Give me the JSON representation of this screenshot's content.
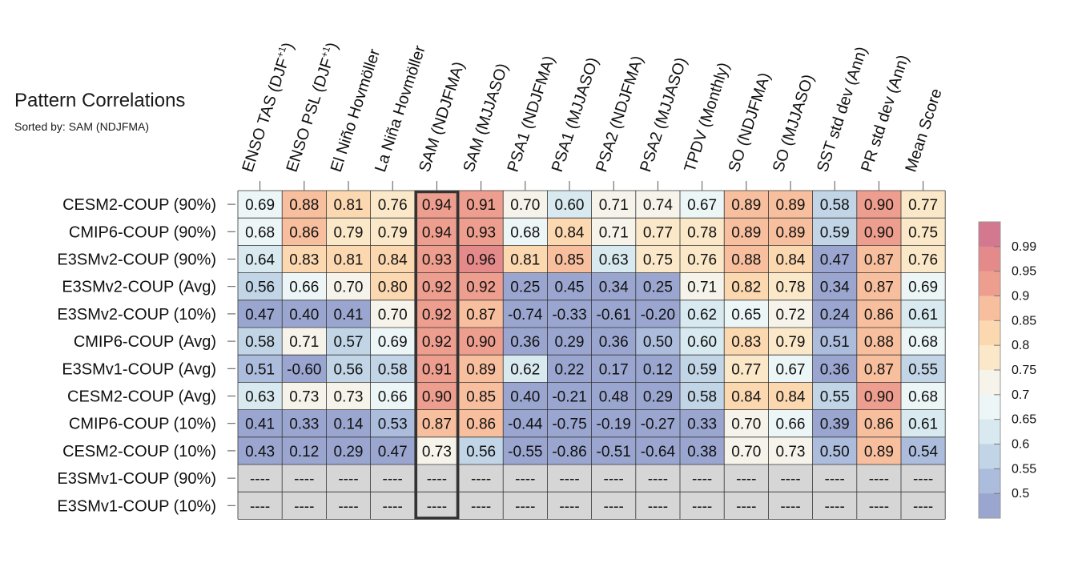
{
  "chart_data": {
    "type": "heatmap",
    "title": "Pattern Correlations",
    "subtitle": "Sorted by: SAM (NDJFMA)",
    "columns": [
      {
        "label": "ENSO TAS (DJF",
        "sup": "+1",
        "close": ")"
      },
      {
        "label": "ENSO PSL (DJF",
        "sup": "+1",
        "close": ")"
      },
      {
        "label": "El Niño Hovmöller",
        "sup": "",
        "close": ""
      },
      {
        "label": "La Niña Hovmöller",
        "sup": "",
        "close": ""
      },
      {
        "label": "SAM (NDJFMA)",
        "sup": "",
        "close": ""
      },
      {
        "label": "SAM (MJJASO)",
        "sup": "",
        "close": ""
      },
      {
        "label": "PSA1 (NDJFMA)",
        "sup": "",
        "close": ""
      },
      {
        "label": "PSA1 (MJJASO)",
        "sup": "",
        "close": ""
      },
      {
        "label": "PSA2 (NDJFMA)",
        "sup": "",
        "close": ""
      },
      {
        "label": "PSA2 (MJJASO)",
        "sup": "",
        "close": ""
      },
      {
        "label": "TPDV (Monthly)",
        "sup": "",
        "close": ""
      },
      {
        "label": "SO (NDJFMA)",
        "sup": "",
        "close": ""
      },
      {
        "label": "SO (MJJASO)",
        "sup": "",
        "close": ""
      },
      {
        "label": "SST std dev (Ann)",
        "sup": "",
        "close": ""
      },
      {
        "label": "PR std dev (Ann)",
        "sup": "",
        "close": ""
      },
      {
        "label": "Mean Score",
        "sup": "",
        "close": ""
      }
    ],
    "rows": [
      {
        "label": "CESM2-COUP (90%)",
        "values": [
          "0.69",
          "0.88",
          "0.81",
          "0.76",
          "0.94",
          "0.91",
          "0.70",
          "0.60",
          "0.71",
          "0.74",
          "0.67",
          "0.89",
          "0.89",
          "0.58",
          "0.90",
          "0.77"
        ]
      },
      {
        "label": "CMIP6-COUP (90%)",
        "values": [
          "0.68",
          "0.86",
          "0.79",
          "0.79",
          "0.94",
          "0.93",
          "0.68",
          "0.84",
          "0.71",
          "0.77",
          "0.78",
          "0.89",
          "0.89",
          "0.59",
          "0.90",
          "0.75"
        ]
      },
      {
        "label": "E3SMv2-COUP (90%)",
        "values": [
          "0.64",
          "0.83",
          "0.81",
          "0.84",
          "0.93",
          "0.96",
          "0.81",
          "0.85",
          "0.63",
          "0.75",
          "0.76",
          "0.88",
          "0.84",
          "0.47",
          "0.87",
          "0.76"
        ]
      },
      {
        "label": "E3SMv2-COUP (Avg)",
        "values": [
          "0.56",
          "0.66",
          "0.70",
          "0.80",
          "0.92",
          "0.92",
          "0.25",
          "0.45",
          "0.34",
          "0.25",
          "0.71",
          "0.82",
          "0.78",
          "0.34",
          "0.87",
          "0.69"
        ]
      },
      {
        "label": "E3SMv2-COUP (10%)",
        "values": [
          "0.47",
          "0.40",
          "0.41",
          "0.70",
          "0.92",
          "0.87",
          "-0.74",
          "-0.33",
          "-0.61",
          "-0.20",
          "0.62",
          "0.65",
          "0.72",
          "0.24",
          "0.86",
          "0.61"
        ]
      },
      {
        "label": "CMIP6-COUP (Avg)",
        "values": [
          "0.58",
          "0.71",
          "0.57",
          "0.69",
          "0.92",
          "0.90",
          "0.36",
          "0.29",
          "0.36",
          "0.50",
          "0.60",
          "0.83",
          "0.79",
          "0.51",
          "0.88",
          "0.68"
        ]
      },
      {
        "label": "E3SMv1-COUP (Avg)",
        "values": [
          "0.51",
          "-0.60",
          "0.56",
          "0.58",
          "0.91",
          "0.89",
          "0.62",
          "0.22",
          "0.17",
          "0.12",
          "0.59",
          "0.77",
          "0.67",
          "0.36",
          "0.87",
          "0.55"
        ]
      },
      {
        "label": "CESM2-COUP (Avg)",
        "values": [
          "0.63",
          "0.73",
          "0.73",
          "0.66",
          "0.90",
          "0.85",
          "0.40",
          "-0.21",
          "0.48",
          "0.29",
          "0.58",
          "0.84",
          "0.84",
          "0.55",
          "0.90",
          "0.68"
        ]
      },
      {
        "label": "CMIP6-COUP (10%)",
        "values": [
          "0.41",
          "0.33",
          "0.14",
          "0.53",
          "0.87",
          "0.86",
          "-0.44",
          "-0.75",
          "-0.19",
          "-0.27",
          "0.33",
          "0.70",
          "0.66",
          "0.39",
          "0.86",
          "0.61"
        ]
      },
      {
        "label": "CESM2-COUP (10%)",
        "values": [
          "0.43",
          "0.12",
          "0.29",
          "0.47",
          "0.73",
          "0.56",
          "-0.55",
          "-0.86",
          "-0.51",
          "-0.64",
          "0.38",
          "0.70",
          "0.73",
          "0.50",
          "0.89",
          "0.54"
        ]
      },
      {
        "label": "E3SMv1-COUP (90%)",
        "values": [
          "----",
          "----",
          "----",
          "----",
          "----",
          "----",
          "----",
          "----",
          "----",
          "----",
          "----",
          "----",
          "----",
          "----",
          "----",
          "----"
        ]
      },
      {
        "label": "E3SMv1-COUP (10%)",
        "values": [
          "----",
          "----",
          "----",
          "----",
          "----",
          "----",
          "----",
          "----",
          "----",
          "----",
          "----",
          "----",
          "----",
          "----",
          "----",
          "----"
        ]
      }
    ],
    "highlight_column": "SAM (NDJFMA)",
    "colorbar": {
      "labels": [
        "0.99",
        "0.95",
        "0.9",
        "0.85",
        "0.8",
        "0.75",
        "0.7",
        "0.65",
        "0.6",
        "0.55",
        "0.5"
      ],
      "bounds": [
        0.5,
        0.55,
        0.6,
        0.65,
        0.7,
        0.75,
        0.8,
        0.85,
        0.9,
        0.95,
        0.99
      ],
      "colors_low_to_high": [
        "#9aa6cf",
        "#acbcdc",
        "#c1d5e6",
        "#d8e9ef",
        "#edf6f7",
        "#f6f3ea",
        "#fbe8c9",
        "#fcd8b1",
        "#f8bf9e",
        "#ee9e8e",
        "#e58a8a",
        "#d3788f"
      ],
      "missing_color": "#d6d6d6"
    }
  }
}
